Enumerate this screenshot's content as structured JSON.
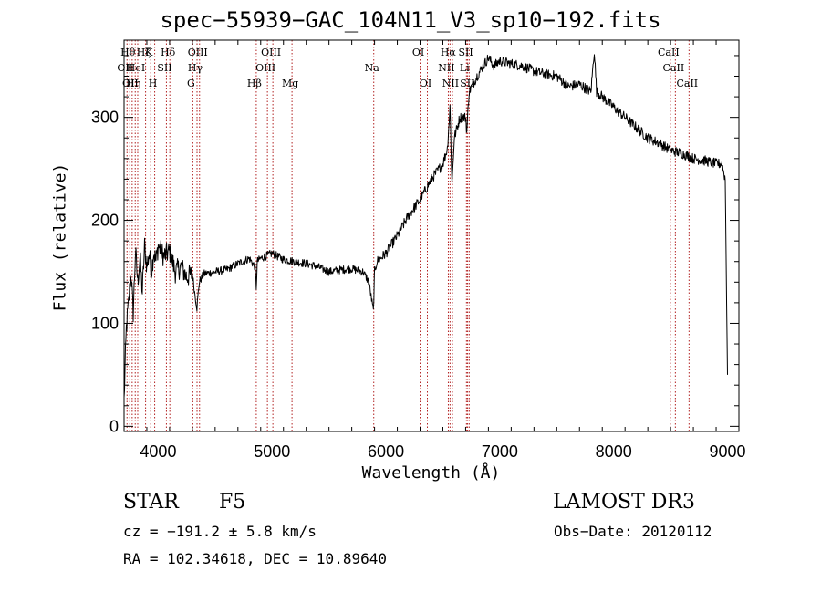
{
  "chart_data": {
    "type": "line",
    "title": "spec−55939−GAC_104N11_V3_sp10−192.fits",
    "xlabel": "Wavelength (Å)",
    "ylabel": "Flux (relative)",
    "xlim": [
      3700,
      9100
    ],
    "ylim": [
      -5,
      375
    ],
    "xticks": [
      4000,
      5000,
      6000,
      7000,
      8000,
      9000
    ],
    "yticks": [
      0,
      100,
      200,
      300
    ],
    "grid": false,
    "series": [
      {
        "name": "flux",
        "x": [
          3700,
          3720,
          3740,
          3760,
          3780,
          3800,
          3820,
          3840,
          3860,
          3880,
          3900,
          3920,
          3940,
          3960,
          3980,
          4000,
          4050,
          4100,
          4150,
          4200,
          4250,
          4300,
          4320,
          4340,
          4360,
          4400,
          4500,
          4600,
          4700,
          4800,
          4850,
          4861,
          4870,
          4900,
          5000,
          5100,
          5200,
          5300,
          5400,
          5500,
          5600,
          5700,
          5800,
          5850,
          5890,
          5900,
          5920,
          6000,
          6100,
          6200,
          6300,
          6400,
          6500,
          6540,
          6563,
          6580,
          6600,
          6650,
          6700,
          6710,
          6730,
          6800,
          6900,
          6950,
          7000,
          7100,
          7200,
          7300,
          7400,
          7500,
          7600,
          7700,
          7800,
          7830,
          7850,
          7900,
          8000,
          8100,
          8200,
          8300,
          8400,
          8500,
          8600,
          8700,
          8800,
          8900,
          8950,
          8980,
          9000
        ],
        "y": [
          25,
          95,
          120,
          150,
          110,
          170,
          140,
          165,
          130,
          175,
          155,
          168,
          150,
          170,
          160,
          175,
          165,
          170,
          150,
          155,
          145,
          148,
          130,
          115,
          140,
          148,
          150,
          152,
          158,
          163,
          155,
          135,
          160,
          163,
          168,
          162,
          160,
          158,
          155,
          150,
          152,
          153,
          150,
          140,
          112,
          150,
          160,
          168,
          185,
          205,
          220,
          240,
          255,
          270,
          310,
          235,
          280,
          300,
          300,
          285,
          325,
          340,
          358,
          350,
          355,
          352,
          350,
          345,
          342,
          340,
          330,
          332,
          325,
          365,
          325,
          320,
          310,
          300,
          290,
          280,
          275,
          268,
          265,
          260,
          258,
          255,
          255,
          240,
          50
        ]
      }
    ],
    "lines": [
      {
        "wave": 3726,
        "label": "OII",
        "row": 2
      },
      {
        "wave": 3750,
        "label": "Hθ",
        "row": 1
      },
      {
        "wave": 3771,
        "label": "OII",
        "row": 3
      },
      {
        "wave": 3798,
        "label": "Hη",
        "row": 3
      },
      {
        "wave": 3820,
        "label": "HeI",
        "row": 2
      },
      {
        "wave": 3889,
        "label": "Hζ",
        "row": 1
      },
      {
        "wave": 3934,
        "label": "K",
        "row": 1
      },
      {
        "wave": 3969,
        "label": "H",
        "row": 3
      },
      {
        "wave": 4072,
        "label": "SII",
        "row": 2
      },
      {
        "wave": 4102,
        "label": "Hδ",
        "row": 1
      },
      {
        "wave": 4304,
        "label": "G",
        "row": 3
      },
      {
        "wave": 4341,
        "label": "Hγ",
        "row": 2
      },
      {
        "wave": 4363,
        "label": "OIII",
        "row": 1
      },
      {
        "wave": 4861,
        "label": "Hβ",
        "row": 3
      },
      {
        "wave": 4959,
        "label": "OIII",
        "row": 2
      },
      {
        "wave": 5007,
        "label": "OIII",
        "row": 1
      },
      {
        "wave": 5175,
        "label": "Mg",
        "row": 3
      },
      {
        "wave": 5893,
        "label": "Na",
        "row": 2
      },
      {
        "wave": 6300,
        "label": "OI",
        "row": 1
      },
      {
        "wave": 6364,
        "label": "OI",
        "row": 3
      },
      {
        "wave": 6548,
        "label": "NII",
        "row": 2
      },
      {
        "wave": 6563,
        "label": "Hα",
        "row": 1
      },
      {
        "wave": 6584,
        "label": "NII",
        "row": 3
      },
      {
        "wave": 6707,
        "label": "Li",
        "row": 2
      },
      {
        "wave": 6717,
        "label": "SII",
        "row": 1
      },
      {
        "wave": 6731,
        "label": "SII",
        "row": 3
      },
      {
        "wave": 8498,
        "label": "CaII",
        "row": 1
      },
      {
        "wave": 8542,
        "label": "CaII",
        "row": 2
      },
      {
        "wave": 8662,
        "label": "CaII",
        "row": 3
      }
    ]
  },
  "info": {
    "object_class": "STAR",
    "subclass": "F5",
    "survey": "LAMOST DR3",
    "cz": "cz = −191.2 ± 5.8 km/s",
    "obs_date": "Obs−Date: 20120112",
    "radec": "RA = 102.34618, DEC =  10.89640"
  },
  "colors": {
    "spectrum": "#000000",
    "line_markers": "#b22222",
    "axes": "#000000",
    "background": "#ffffff"
  }
}
